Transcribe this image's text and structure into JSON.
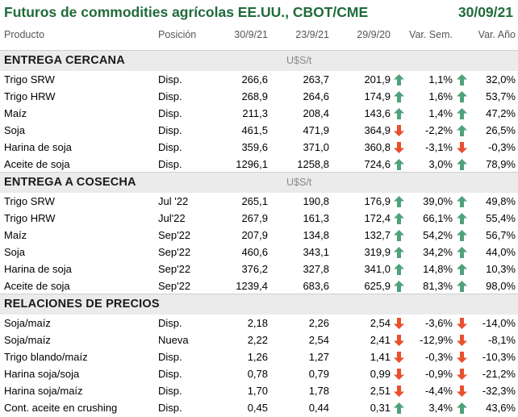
{
  "title": "Futuros de commodities agrícolas EE.UU., CBOT/CME",
  "date": "30/09/21",
  "headers": {
    "producto": "Producto",
    "posicion": "Posición",
    "d1": "30/9/21",
    "d2": "23/9/21",
    "d3": "29/9/20",
    "sem": "Var. Sem.",
    "ano": "Var. Año"
  },
  "colors": {
    "up": "#4fa27a",
    "down": "#e8502e",
    "title": "#1f6b3a"
  },
  "sections": [
    {
      "title": "ENTREGA CERCANA",
      "unit": "U$S/t",
      "rows": [
        {
          "producto": "Trigo SRW",
          "posicion": "Disp.",
          "v1": "266,6",
          "v2": "263,7",
          "v3": "201,9",
          "sem": "1,1%",
          "sem_dir": "up",
          "ano": "32,0%",
          "ano_dir": "up"
        },
        {
          "producto": "Trigo HRW",
          "posicion": "Disp.",
          "v1": "268,9",
          "v2": "264,6",
          "v3": "174,9",
          "sem": "1,6%",
          "sem_dir": "up",
          "ano": "53,7%",
          "ano_dir": "up"
        },
        {
          "producto": "Maíz",
          "posicion": "Disp.",
          "v1": "211,3",
          "v2": "208,4",
          "v3": "143,6",
          "sem": "1,4%",
          "sem_dir": "up",
          "ano": "47,2%",
          "ano_dir": "up"
        },
        {
          "producto": "Soja",
          "posicion": "Disp.",
          "v1": "461,5",
          "v2": "471,9",
          "v3": "364,9",
          "sem": "-2,2%",
          "sem_dir": "down",
          "ano": "26,5%",
          "ano_dir": "up"
        },
        {
          "producto": "Harina de soja",
          "posicion": "Disp.",
          "v1": "359,6",
          "v2": "371,0",
          "v3": "360,8",
          "sem": "-3,1%",
          "sem_dir": "down",
          "ano": "-0,3%",
          "ano_dir": "down"
        },
        {
          "producto": "Aceite de soja",
          "posicion": "Disp.",
          "v1": "1296,1",
          "v2": "1258,8",
          "v3": "724,6",
          "sem": "3,0%",
          "sem_dir": "up",
          "ano": "78,9%",
          "ano_dir": "up"
        }
      ]
    },
    {
      "title": "ENTREGA A COSECHA",
      "unit": "U$S/t",
      "rows": [
        {
          "producto": "Trigo SRW",
          "posicion": "Jul '22",
          "v1": "265,1",
          "v2": "190,8",
          "v3": "176,9",
          "sem": "39,0%",
          "sem_dir": "up",
          "ano": "49,8%",
          "ano_dir": "up"
        },
        {
          "producto": "Trigo HRW",
          "posicion": "Jul'22",
          "v1": "267,9",
          "v2": "161,3",
          "v3": "172,4",
          "sem": "66,1%",
          "sem_dir": "up",
          "ano": "55,4%",
          "ano_dir": "up"
        },
        {
          "producto": "Maíz",
          "posicion": "Sep'22",
          "v1": "207,9",
          "v2": "134,8",
          "v3": "132,7",
          "sem": "54,2%",
          "sem_dir": "up",
          "ano": "56,7%",
          "ano_dir": "up"
        },
        {
          "producto": "Soja",
          "posicion": "Sep'22",
          "v1": "460,6",
          "v2": "343,1",
          "v3": "319,9",
          "sem": "34,2%",
          "sem_dir": "up",
          "ano": "44,0%",
          "ano_dir": "up"
        },
        {
          "producto": "Harina de soja",
          "posicion": "Sep'22",
          "v1": "376,2",
          "v2": "327,8",
          "v3": "341,0",
          "sem": "14,8%",
          "sem_dir": "up",
          "ano": "10,3%",
          "ano_dir": "up"
        },
        {
          "producto": "Aceite de soja",
          "posicion": "Sep'22",
          "v1": "1239,4",
          "v2": "683,6",
          "v3": "625,9",
          "sem": "81,3%",
          "sem_dir": "up",
          "ano": "98,0%",
          "ano_dir": "up"
        }
      ]
    },
    {
      "title": "RELACIONES DE PRECIOS",
      "unit": "",
      "rows": [
        {
          "producto": "Soja/maíz",
          "posicion": "Disp.",
          "v1": "2,18",
          "v2": "2,26",
          "v3": "2,54",
          "sem": "-3,6%",
          "sem_dir": "down",
          "ano": "-14,0%",
          "ano_dir": "down"
        },
        {
          "producto": "Soja/maíz",
          "posicion": "Nueva",
          "v1": "2,22",
          "v2": "2,54",
          "v3": "2,41",
          "sem": "-12,9%",
          "sem_dir": "down",
          "ano": "-8,1%",
          "ano_dir": "down"
        },
        {
          "producto": "Trigo blando/maíz",
          "posicion": "Disp.",
          "v1": "1,26",
          "v2": "1,27",
          "v3": "1,41",
          "sem": "-0,3%",
          "sem_dir": "down",
          "ano": "-10,3%",
          "ano_dir": "down"
        },
        {
          "producto": "Harina soja/soja",
          "posicion": "Disp.",
          "v1": "0,78",
          "v2": "0,79",
          "v3": "0,99",
          "sem": "-0,9%",
          "sem_dir": "down",
          "ano": "-21,2%",
          "ano_dir": "down"
        },
        {
          "producto": "Harina soja/maíz",
          "posicion": "Disp.",
          "v1": "1,70",
          "v2": "1,78",
          "v3": "2,51",
          "sem": "-4,4%",
          "sem_dir": "down",
          "ano": "-32,3%",
          "ano_dir": "down"
        },
        {
          "producto": "Cont. aceite en crushing",
          "posicion": "Disp.",
          "v1": "0,45",
          "v2": "0,44",
          "v3": "0,31",
          "sem": "3,4%",
          "sem_dir": "up",
          "ano": "43,6%",
          "ano_dir": "up"
        }
      ]
    }
  ]
}
